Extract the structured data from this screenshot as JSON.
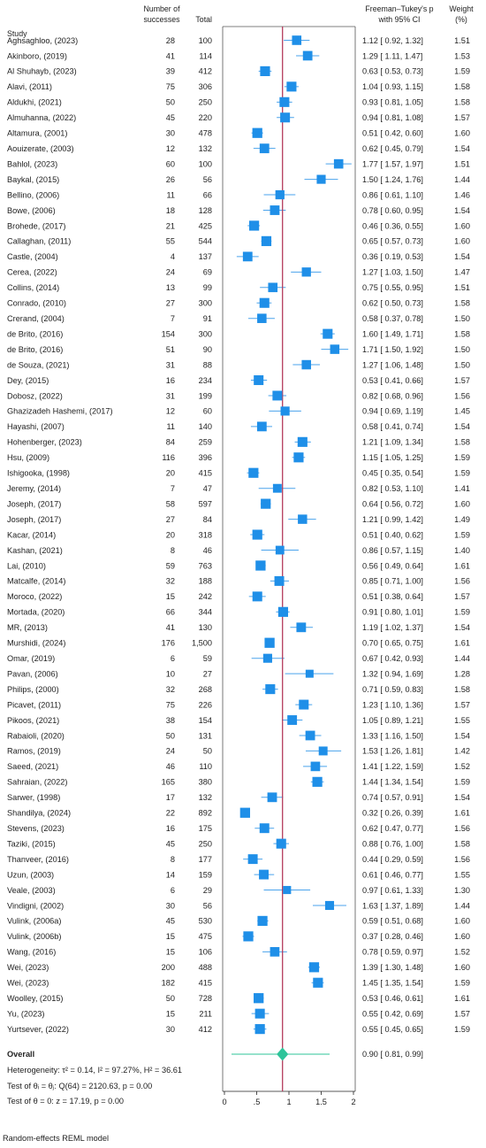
{
  "header": {
    "study": "Study",
    "successes_line1": "Number of",
    "successes_line2": "successes",
    "total": "Total",
    "effect_line1": "Freeman–Tukey's p",
    "effect_line2": "with 95% CI",
    "weight_line1": "Weight",
    "weight_line2": "(%)"
  },
  "overall": {
    "label": "Overall",
    "estimate_text": "0.90 [ 0.81, 0.99]",
    "heterogeneity": "Heterogeneity: τ² = 0.14, I² = 97.27%, H² = 36.61",
    "test_homogeneity": "Test of θᵢ = θⱼ: Q(64) = 2120.63, p = 0.00",
    "test_zero": "Test of θ = 0: z = 17.19, p = 0.00"
  },
  "footnote": "Random-effects REML model",
  "chart_data": {
    "type": "forest",
    "xlim": [
      0,
      2
    ],
    "xticks": [
      0,
      0.5,
      1,
      1.5,
      2
    ],
    "xtick_labels": [
      "0",
      ".5",
      "1",
      "1.5",
      "2"
    ],
    "reference_line": 0.9,
    "overall": {
      "estimate": 0.9,
      "lo": 0.81,
      "hi": 0.99
    },
    "colors": {
      "box": "#1f8fe8",
      "ci": "#4aa3ec",
      "diamond": "#2ec49a",
      "reference": "#b43c5c"
    },
    "studies": [
      {
        "study": "Aghsaghloo, (2023)",
        "successes": "28",
        "total": "100",
        "est": 1.12,
        "lo": 0.92,
        "hi": 1.32,
        "ci_text": "1.12 [ 0.92, 1.32]",
        "weight": "1.51"
      },
      {
        "study": "Akinboro, (2019)",
        "successes": "41",
        "total": "114",
        "est": 1.29,
        "lo": 1.11,
        "hi": 1.47,
        "ci_text": "1.29 [ 1.11, 1.47]",
        "weight": "1.53"
      },
      {
        "study": "Al Shuhayb, (2023)",
        "successes": "39",
        "total": "412",
        "est": 0.63,
        "lo": 0.53,
        "hi": 0.73,
        "ci_text": "0.63 [ 0.53, 0.73]",
        "weight": "1.59"
      },
      {
        "study": "Alavi, (2011)",
        "successes": "75",
        "total": "306",
        "est": 1.04,
        "lo": 0.93,
        "hi": 1.15,
        "ci_text": "1.04 [ 0.93, 1.15]",
        "weight": "1.58"
      },
      {
        "study": "Aldukhi, (2021)",
        "successes": "50",
        "total": "250",
        "est": 0.93,
        "lo": 0.81,
        "hi": 1.05,
        "ci_text": "0.93 [ 0.81, 1.05]",
        "weight": "1.58"
      },
      {
        "study": "Almuhanna, (2022)",
        "successes": "45",
        "total": "220",
        "est": 0.94,
        "lo": 0.81,
        "hi": 1.08,
        "ci_text": "0.94 [ 0.81, 1.08]",
        "weight": "1.57"
      },
      {
        "study": "Altamura, (2001)",
        "successes": "30",
        "total": "478",
        "est": 0.51,
        "lo": 0.42,
        "hi": 0.6,
        "ci_text": "0.51 [ 0.42, 0.60]",
        "weight": "1.60"
      },
      {
        "study": "Aouizerate, (2003)",
        "successes": "12",
        "total": "132",
        "est": 0.62,
        "lo": 0.45,
        "hi": 0.79,
        "ci_text": "0.62 [ 0.45, 0.79]",
        "weight": "1.54"
      },
      {
        "study": "Bahlol, (2023)",
        "successes": "60",
        "total": "100",
        "est": 1.77,
        "lo": 1.57,
        "hi": 1.97,
        "ci_text": "1.77 [ 1.57, 1.97]",
        "weight": "1.51"
      },
      {
        "study": "Baykal, (2015)",
        "successes": "26",
        "total": "56",
        "est": 1.5,
        "lo": 1.24,
        "hi": 1.76,
        "ci_text": "1.50 [ 1.24, 1.76]",
        "weight": "1.44"
      },
      {
        "study": "Bellino, (2006)",
        "successes": "11",
        "total": "66",
        "est": 0.86,
        "lo": 0.61,
        "hi": 1.1,
        "ci_text": "0.86 [ 0.61, 1.10]",
        "weight": "1.46"
      },
      {
        "study": "Bowe, (2006)",
        "successes": "18",
        "total": "128",
        "est": 0.78,
        "lo": 0.6,
        "hi": 0.95,
        "ci_text": "0.78 [ 0.60, 0.95]",
        "weight": "1.54"
      },
      {
        "study": "Brohede, (2017)",
        "successes": "21",
        "total": "425",
        "est": 0.46,
        "lo": 0.36,
        "hi": 0.55,
        "ci_text": "0.46 [ 0.36, 0.55]",
        "weight": "1.60"
      },
      {
        "study": "Callaghan, (2011)",
        "successes": "55",
        "total": "544",
        "est": 0.65,
        "lo": 0.57,
        "hi": 0.73,
        "ci_text": "0.65 [ 0.57, 0.73]",
        "weight": "1.60"
      },
      {
        "study": "Castle, (2004)",
        "successes": "4",
        "total": "137",
        "est": 0.36,
        "lo": 0.19,
        "hi": 0.53,
        "ci_text": "0.36 [ 0.19, 0.53]",
        "weight": "1.54"
      },
      {
        "study": "Cerea, (2022)",
        "successes": "24",
        "total": "69",
        "est": 1.27,
        "lo": 1.03,
        "hi": 1.5,
        "ci_text": "1.27 [ 1.03, 1.50]",
        "weight": "1.47"
      },
      {
        "study": "Collins, (2014)",
        "successes": "13",
        "total": "99",
        "est": 0.75,
        "lo": 0.55,
        "hi": 0.95,
        "ci_text": "0.75 [ 0.55, 0.95]",
        "weight": "1.51"
      },
      {
        "study": "Conrado, (2010)",
        "successes": "27",
        "total": "300",
        "est": 0.62,
        "lo": 0.5,
        "hi": 0.73,
        "ci_text": "0.62 [ 0.50, 0.73]",
        "weight": "1.58"
      },
      {
        "study": "Crerand, (2004)",
        "successes": "7",
        "total": "91",
        "est": 0.58,
        "lo": 0.37,
        "hi": 0.78,
        "ci_text": "0.58 [ 0.37, 0.78]",
        "weight": "1.50"
      },
      {
        "study": "de Brito, (2016)",
        "successes": "154",
        "total": "300",
        "est": 1.6,
        "lo": 1.49,
        "hi": 1.71,
        "ci_text": "1.60 [ 1.49, 1.71]",
        "weight": "1.58"
      },
      {
        "study": "de Brito, (2016)",
        "successes": "51",
        "total": "90",
        "est": 1.71,
        "lo": 1.5,
        "hi": 1.92,
        "ci_text": "1.71 [ 1.50, 1.92]",
        "weight": "1.50"
      },
      {
        "study": "de Souza, (2021)",
        "successes": "31",
        "total": "88",
        "est": 1.27,
        "lo": 1.06,
        "hi": 1.48,
        "ci_text": "1.27 [ 1.06, 1.48]",
        "weight": "1.50"
      },
      {
        "study": "Dey, (2015)",
        "successes": "16",
        "total": "234",
        "est": 0.53,
        "lo": 0.41,
        "hi": 0.66,
        "ci_text": "0.53 [ 0.41, 0.66]",
        "weight": "1.57"
      },
      {
        "study": "Dobosz, (2022)",
        "successes": "31",
        "total": "199",
        "est": 0.82,
        "lo": 0.68,
        "hi": 0.96,
        "ci_text": "0.82 [ 0.68, 0.96]",
        "weight": "1.56"
      },
      {
        "study": "Ghazizadeh Hashemi, (2017)",
        "successes": "12",
        "total": "60",
        "est": 0.94,
        "lo": 0.69,
        "hi": 1.19,
        "ci_text": "0.94 [ 0.69, 1.19]",
        "weight": "1.45"
      },
      {
        "study": "Hayashi, (2007)",
        "successes": "11",
        "total": "140",
        "est": 0.58,
        "lo": 0.41,
        "hi": 0.74,
        "ci_text": "0.58 [ 0.41, 0.74]",
        "weight": "1.54"
      },
      {
        "study": "Hohenberger, (2023)",
        "successes": "84",
        "total": "259",
        "est": 1.21,
        "lo": 1.09,
        "hi": 1.34,
        "ci_text": "1.21 [ 1.09, 1.34]",
        "weight": "1.58"
      },
      {
        "study": "Hsu, (2009)",
        "successes": "116",
        "total": "396",
        "est": 1.15,
        "lo": 1.05,
        "hi": 1.25,
        "ci_text": "1.15 [ 1.05, 1.25]",
        "weight": "1.59"
      },
      {
        "study": "Ishigooka, (1998)",
        "successes": "20",
        "total": "415",
        "est": 0.45,
        "lo": 0.35,
        "hi": 0.54,
        "ci_text": "0.45 [ 0.35, 0.54]",
        "weight": "1.59"
      },
      {
        "study": "Jeremy, (2014)",
        "successes": "7",
        "total": "47",
        "est": 0.82,
        "lo": 0.53,
        "hi": 1.1,
        "ci_text": "0.82 [ 0.53, 1.10]",
        "weight": "1.41"
      },
      {
        "study": "Joseph, (2017)",
        "successes": "58",
        "total": "597",
        "est": 0.64,
        "lo": 0.56,
        "hi": 0.72,
        "ci_text": "0.64 [ 0.56, 0.72]",
        "weight": "1.60"
      },
      {
        "study": "Joseph, (2017)",
        "successes": "27",
        "total": "84",
        "est": 1.21,
        "lo": 0.99,
        "hi": 1.42,
        "ci_text": "1.21 [ 0.99, 1.42]",
        "weight": "1.49"
      },
      {
        "study": "Kacar, (2014)",
        "successes": "20",
        "total": "318",
        "est": 0.51,
        "lo": 0.4,
        "hi": 0.62,
        "ci_text": "0.51 [ 0.40, 0.62]",
        "weight": "1.59"
      },
      {
        "study": "Kashan, (2021)",
        "successes": "8",
        "total": "46",
        "est": 0.86,
        "lo": 0.57,
        "hi": 1.15,
        "ci_text": "0.86 [ 0.57, 1.15]",
        "weight": "1.40"
      },
      {
        "study": "Lai, (2010)",
        "successes": "59",
        "total": "763",
        "est": 0.56,
        "lo": 0.49,
        "hi": 0.64,
        "ci_text": "0.56 [ 0.49, 0.64]",
        "weight": "1.61"
      },
      {
        "study": "Matcalfe, (2014)",
        "successes": "32",
        "total": "188",
        "est": 0.85,
        "lo": 0.71,
        "hi": 1.0,
        "ci_text": "0.85 [ 0.71, 1.00]",
        "weight": "1.56"
      },
      {
        "study": "Moroco, (2022)",
        "successes": "15",
        "total": "242",
        "est": 0.51,
        "lo": 0.38,
        "hi": 0.64,
        "ci_text": "0.51 [ 0.38, 0.64]",
        "weight": "1.57"
      },
      {
        "study": "Mortada, (2020)",
        "successes": "66",
        "total": "344",
        "est": 0.91,
        "lo": 0.8,
        "hi": 1.01,
        "ci_text": "0.91 [ 0.80, 1.01]",
        "weight": "1.59"
      },
      {
        "study": "MR, (2013)",
        "successes": "41",
        "total": "130",
        "est": 1.19,
        "lo": 1.02,
        "hi": 1.37,
        "ci_text": "1.19 [ 1.02, 1.37]",
        "weight": "1.54"
      },
      {
        "study": "Murshidi, (2024)",
        "successes": "176",
        "total": "1,500",
        "est": 0.7,
        "lo": 0.65,
        "hi": 0.75,
        "ci_text": "0.70 [ 0.65, 0.75]",
        "weight": "1.61"
      },
      {
        "study": "Omar, (2019)",
        "successes": "6",
        "total": "59",
        "est": 0.67,
        "lo": 0.42,
        "hi": 0.93,
        "ci_text": "0.67 [ 0.42, 0.93]",
        "weight": "1.44"
      },
      {
        "study": "Pavan, (2006)",
        "successes": "10",
        "total": "27",
        "est": 1.32,
        "lo": 0.94,
        "hi": 1.69,
        "ci_text": "1.32 [ 0.94, 1.69]",
        "weight": "1.28"
      },
      {
        "study": "Philips, (2000)",
        "successes": "32",
        "total": "268",
        "est": 0.71,
        "lo": 0.59,
        "hi": 0.83,
        "ci_text": "0.71 [ 0.59, 0.83]",
        "weight": "1.58"
      },
      {
        "study": "Picavet, (2011)",
        "successes": "75",
        "total": "226",
        "est": 1.23,
        "lo": 1.1,
        "hi": 1.36,
        "ci_text": "1.23 [ 1.10, 1.36]",
        "weight": "1.57"
      },
      {
        "study": "Pikoos, (2021)",
        "successes": "38",
        "total": "154",
        "est": 1.05,
        "lo": 0.89,
        "hi": 1.21,
        "ci_text": "1.05 [ 0.89, 1.21]",
        "weight": "1.55"
      },
      {
        "study": "Rabaioli, (2020)",
        "successes": "50",
        "total": "131",
        "est": 1.33,
        "lo": 1.16,
        "hi": 1.5,
        "ci_text": "1.33 [ 1.16, 1.50]",
        "weight": "1.54"
      },
      {
        "study": "Ramos, (2019)",
        "successes": "24",
        "total": "50",
        "est": 1.53,
        "lo": 1.26,
        "hi": 1.81,
        "ci_text": "1.53 [ 1.26, 1.81]",
        "weight": "1.42"
      },
      {
        "study": "Saeed, (2021)",
        "successes": "46",
        "total": "110",
        "est": 1.41,
        "lo": 1.22,
        "hi": 1.59,
        "ci_text": "1.41 [ 1.22, 1.59]",
        "weight": "1.52"
      },
      {
        "study": "Sahraian, (2022)",
        "successes": "165",
        "total": "380",
        "est": 1.44,
        "lo": 1.34,
        "hi": 1.54,
        "ci_text": "1.44 [ 1.34, 1.54]",
        "weight": "1.59"
      },
      {
        "study": "Sarwer, (1998)",
        "successes": "17",
        "total": "132",
        "est": 0.74,
        "lo": 0.57,
        "hi": 0.91,
        "ci_text": "0.74 [ 0.57, 0.91]",
        "weight": "1.54"
      },
      {
        "study": "Shandilya, (2024)",
        "successes": "22",
        "total": "892",
        "est": 0.32,
        "lo": 0.26,
        "hi": 0.39,
        "ci_text": "0.32 [ 0.26, 0.39]",
        "weight": "1.61"
      },
      {
        "study": "Stevens, (2023)",
        "successes": "16",
        "total": "175",
        "est": 0.62,
        "lo": 0.47,
        "hi": 0.77,
        "ci_text": "0.62 [ 0.47, 0.77]",
        "weight": "1.56"
      },
      {
        "study": "Taziki, (2015)",
        "successes": "45",
        "total": "250",
        "est": 0.88,
        "lo": 0.76,
        "hi": 1.0,
        "ci_text": "0.88 [ 0.76, 1.00]",
        "weight": "1.58"
      },
      {
        "study": "Thanveer, (2016)",
        "successes": "8",
        "total": "177",
        "est": 0.44,
        "lo": 0.29,
        "hi": 0.59,
        "ci_text": "0.44 [ 0.29, 0.59]",
        "weight": "1.56"
      },
      {
        "study": "Uzun, (2003)",
        "successes": "14",
        "total": "159",
        "est": 0.61,
        "lo": 0.46,
        "hi": 0.77,
        "ci_text": "0.61 [ 0.46, 0.77]",
        "weight": "1.55"
      },
      {
        "study": "Veale, (2003)",
        "successes": "6",
        "total": "29",
        "est": 0.97,
        "lo": 0.61,
        "hi": 1.33,
        "ci_text": "0.97 [ 0.61, 1.33]",
        "weight": "1.30"
      },
      {
        "study": "Vindigni, (2002)",
        "successes": "30",
        "total": "56",
        "est": 1.63,
        "lo": 1.37,
        "hi": 1.89,
        "ci_text": "1.63 [ 1.37, 1.89]",
        "weight": "1.44"
      },
      {
        "study": "Vulink, (2006a)",
        "successes": "45",
        "total": "530",
        "est": 0.59,
        "lo": 0.51,
        "hi": 0.68,
        "ci_text": "0.59 [ 0.51, 0.68]",
        "weight": "1.60"
      },
      {
        "study": "Vulink, (2006b)",
        "successes": "15",
        "total": "475",
        "est": 0.37,
        "lo": 0.28,
        "hi": 0.46,
        "ci_text": "0.37 [ 0.28, 0.46]",
        "weight": "1.60"
      },
      {
        "study": "Wang, (2016)",
        "successes": "15",
        "total": "106",
        "est": 0.78,
        "lo": 0.59,
        "hi": 0.97,
        "ci_text": "0.78 [ 0.59, 0.97]",
        "weight": "1.52"
      },
      {
        "study": "Wei, (2023)",
        "successes": "200",
        "total": "488",
        "est": 1.39,
        "lo": 1.3,
        "hi": 1.48,
        "ci_text": "1.39 [ 1.30, 1.48]",
        "weight": "1.60"
      },
      {
        "study": "Wei, (2023)",
        "successes": "182",
        "total": "415",
        "est": 1.45,
        "lo": 1.35,
        "hi": 1.54,
        "ci_text": "1.45 [ 1.35, 1.54]",
        "weight": "1.59"
      },
      {
        "study": "Woolley, (2015)",
        "successes": "50",
        "total": "728",
        "est": 0.53,
        "lo": 0.46,
        "hi": 0.61,
        "ci_text": "0.53 [ 0.46, 0.61]",
        "weight": "1.61"
      },
      {
        "study": "Yu, (2023)",
        "successes": "15",
        "total": "211",
        "est": 0.55,
        "lo": 0.42,
        "hi": 0.69,
        "ci_text": "0.55 [ 0.42, 0.69]",
        "weight": "1.57"
      },
      {
        "study": "Yurtsever, (2022)",
        "successes": "30",
        "total": "412",
        "est": 0.55,
        "lo": 0.45,
        "hi": 0.65,
        "ci_text": "0.55 [ 0.45, 0.65]",
        "weight": "1.59"
      }
    ]
  }
}
